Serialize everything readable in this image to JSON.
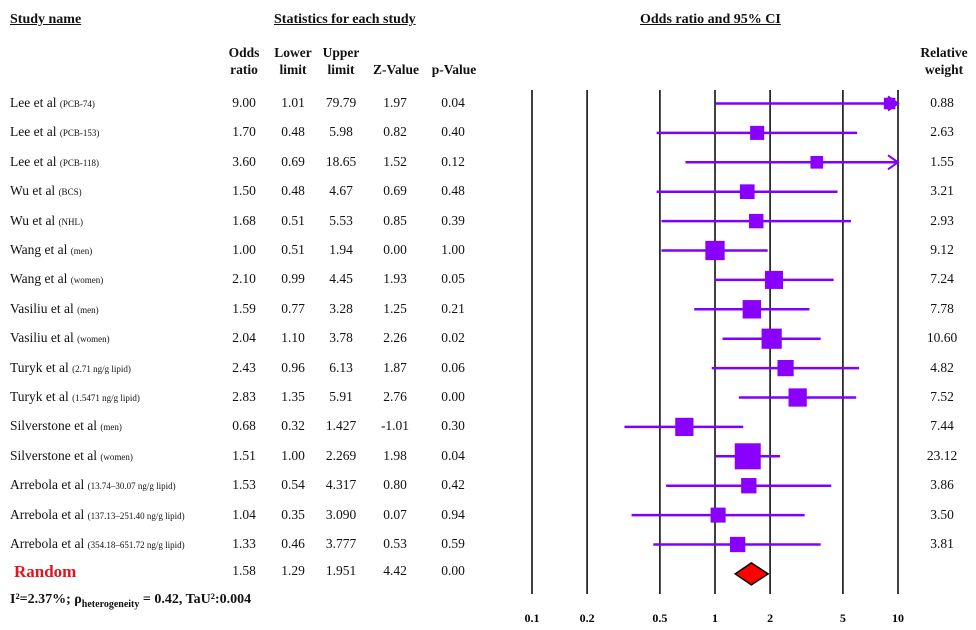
{
  "headers": {
    "study_name": "Study name",
    "statistics": "Statistics for each study",
    "odds_ratio_ci": "Odds ratio and 95% CI",
    "relative_weight": "Relative weight",
    "odds_ratio": "Odds ratio",
    "lower_limit": "Lower limit",
    "upper_limit": "Upper limit",
    "z_value": "Z-Value",
    "p_value": "p-Value"
  },
  "studies": [
    {
      "name": "Lee et al",
      "sub": "(PCB-74)",
      "or": "9.00",
      "lower": "1.01",
      "upper": "79.79",
      "z": "1.97",
      "p": "0.04",
      "weight": "0.88"
    },
    {
      "name": "Lee et al",
      "sub": "(PCB-153)",
      "or": "1.70",
      "lower": "0.48",
      "upper": "5.98",
      "z": "0.82",
      "p": "0.40",
      "weight": "2.63"
    },
    {
      "name": "Lee et al",
      "sub": "(PCB-118)",
      "or": "3.60",
      "lower": "0.69",
      "upper": "18.65",
      "z": "1.52",
      "p": "0.12",
      "weight": "1.55"
    },
    {
      "name": "Wu et al",
      "sub": "(BCS)",
      "or": "1.50",
      "lower": "0.48",
      "upper": "4.67",
      "z": "0.69",
      "p": "0.48",
      "weight": "3.21"
    },
    {
      "name": "Wu  et al",
      "sub": "(NHL)",
      "or": "1.68",
      "lower": "0.51",
      "upper": "5.53",
      "z": "0.85",
      "p": "0.39",
      "weight": "2.93"
    },
    {
      "name": "Wang et al",
      "sub": "(men)",
      "or": "1.00",
      "lower": "0.51",
      "upper": "1.94",
      "z": "0.00",
      "p": "1.00",
      "weight": "9.12"
    },
    {
      "name": "Wang et al",
      "sub": "(women)",
      "or": "2.10",
      "lower": "0.99",
      "upper": "4.45",
      "z": "1.93",
      "p": "0.05",
      "weight": "7.24"
    },
    {
      "name": "Vasiliu et al",
      "sub": "(men)",
      "or": "1.59",
      "lower": "0.77",
      "upper": "3.28",
      "z": "1.25",
      "p": "0.21",
      "weight": "7.78"
    },
    {
      "name": "Vasiliu et al",
      "sub": "(women)",
      "or": "2.04",
      "lower": "1.10",
      "upper": "3.78",
      "z": "2.26",
      "p": "0.02",
      "weight": "10.60"
    },
    {
      "name": "Turyk et al",
      "sub": "(2.71 ng/g lipid)",
      "or": "2.43",
      "lower": "0.96",
      "upper": "6.13",
      "z": "1.87",
      "p": "0.06",
      "weight": "4.82"
    },
    {
      "name": "Turyk et al",
      "sub": "(1.5471 ng/g lipid)",
      "or": "2.83",
      "lower": "1.35",
      "upper": "5.91",
      "z": "2.76",
      "p": "0.00",
      "weight": "7.52"
    },
    {
      "name": "Silverstone et al",
      "sub": "(men)",
      "or": "0.68",
      "lower": "0.32",
      "upper": "1.427",
      "z": "-1.01",
      "p": "0.30",
      "weight": "7.44"
    },
    {
      "name": "Silverstone et al",
      "sub": "(women)",
      "or": "1.51",
      "lower": "1.00",
      "upper": "2.269",
      "z": "1.98",
      "p": "0.04",
      "weight": "23.12"
    },
    {
      "name": "Arrebola et al",
      "sub": "(13.74–30.07 ng/g lipid)",
      "or": "1.53",
      "lower": "0.54",
      "upper": "4.317",
      "z": "0.80",
      "p": "0.42",
      "weight": "3.86"
    },
    {
      "name": "Arrebola et al",
      "sub": "(137.13–251.40 ng/g lipid)",
      "or": "1.04",
      "lower": "0.35",
      "upper": "3.090",
      "z": "0.07",
      "p": "0.94",
      "weight": "3.50"
    },
    {
      "name": "Arrebola et al",
      "sub": "(354.18–651.72 ng/g lipid)",
      "or": "1.33",
      "lower": "0.46",
      "upper": "3.777",
      "z": "0.53",
      "p": "0.59",
      "weight": "3.81"
    }
  ],
  "random": {
    "label": "Random",
    "or": "1.58",
    "lower": "1.29",
    "upper": "1.951",
    "z": "4.42",
    "p": "0.00"
  },
  "footer": {
    "i2": "I²=2.37%; ",
    "rho": "ρ",
    "rho_sub": "heterogeneity",
    "rest": " = 0.42, TaU²:0.004"
  },
  "colors": {
    "ci_line": "#8000ff",
    "marker": "#8a00ff",
    "summary_fill": "#ff0000",
    "axis": "#000000"
  },
  "chart_data": {
    "type": "forest",
    "x_scale": "log",
    "xlim": [
      0.1,
      10
    ],
    "x_ticks": [
      "0.1",
      "0.2",
      "0.5",
      "1",
      "2",
      "5",
      "10"
    ],
    "x_tick_values": [
      0.1,
      0.2,
      0.5,
      1,
      2,
      5,
      10
    ],
    "reference_lines": [
      0.1,
      0.2,
      0.5,
      1,
      2,
      5,
      10
    ],
    "series": [
      {
        "or": 9.0,
        "lower": 1.01,
        "upper": 79.79,
        "weight": 0.88
      },
      {
        "or": 1.7,
        "lower": 0.48,
        "upper": 5.98,
        "weight": 2.63
      },
      {
        "or": 3.6,
        "lower": 0.69,
        "upper": 18.65,
        "weight": 1.55
      },
      {
        "or": 1.5,
        "lower": 0.48,
        "upper": 4.67,
        "weight": 3.21
      },
      {
        "or": 1.68,
        "lower": 0.51,
        "upper": 5.53,
        "weight": 2.93
      },
      {
        "or": 1.0,
        "lower": 0.51,
        "upper": 1.94,
        "weight": 9.12
      },
      {
        "or": 2.1,
        "lower": 0.99,
        "upper": 4.45,
        "weight": 7.24
      },
      {
        "or": 1.59,
        "lower": 0.77,
        "upper": 3.28,
        "weight": 7.78
      },
      {
        "or": 2.04,
        "lower": 1.1,
        "upper": 3.78,
        "weight": 10.6
      },
      {
        "or": 2.43,
        "lower": 0.96,
        "upper": 6.13,
        "weight": 4.82
      },
      {
        "or": 2.83,
        "lower": 1.35,
        "upper": 5.91,
        "weight": 7.52
      },
      {
        "or": 0.68,
        "lower": 0.32,
        "upper": 1.427,
        "weight": 7.44
      },
      {
        "or": 1.51,
        "lower": 1.0,
        "upper": 2.269,
        "weight": 23.12
      },
      {
        "or": 1.53,
        "lower": 0.54,
        "upper": 4.317,
        "weight": 3.86
      },
      {
        "or": 1.04,
        "lower": 0.35,
        "upper": 3.09,
        "weight": 3.5
      },
      {
        "or": 1.33,
        "lower": 0.46,
        "upper": 3.777,
        "weight": 3.81
      }
    ],
    "summary": {
      "or": 1.58,
      "lower": 1.29,
      "upper": 1.951
    }
  }
}
